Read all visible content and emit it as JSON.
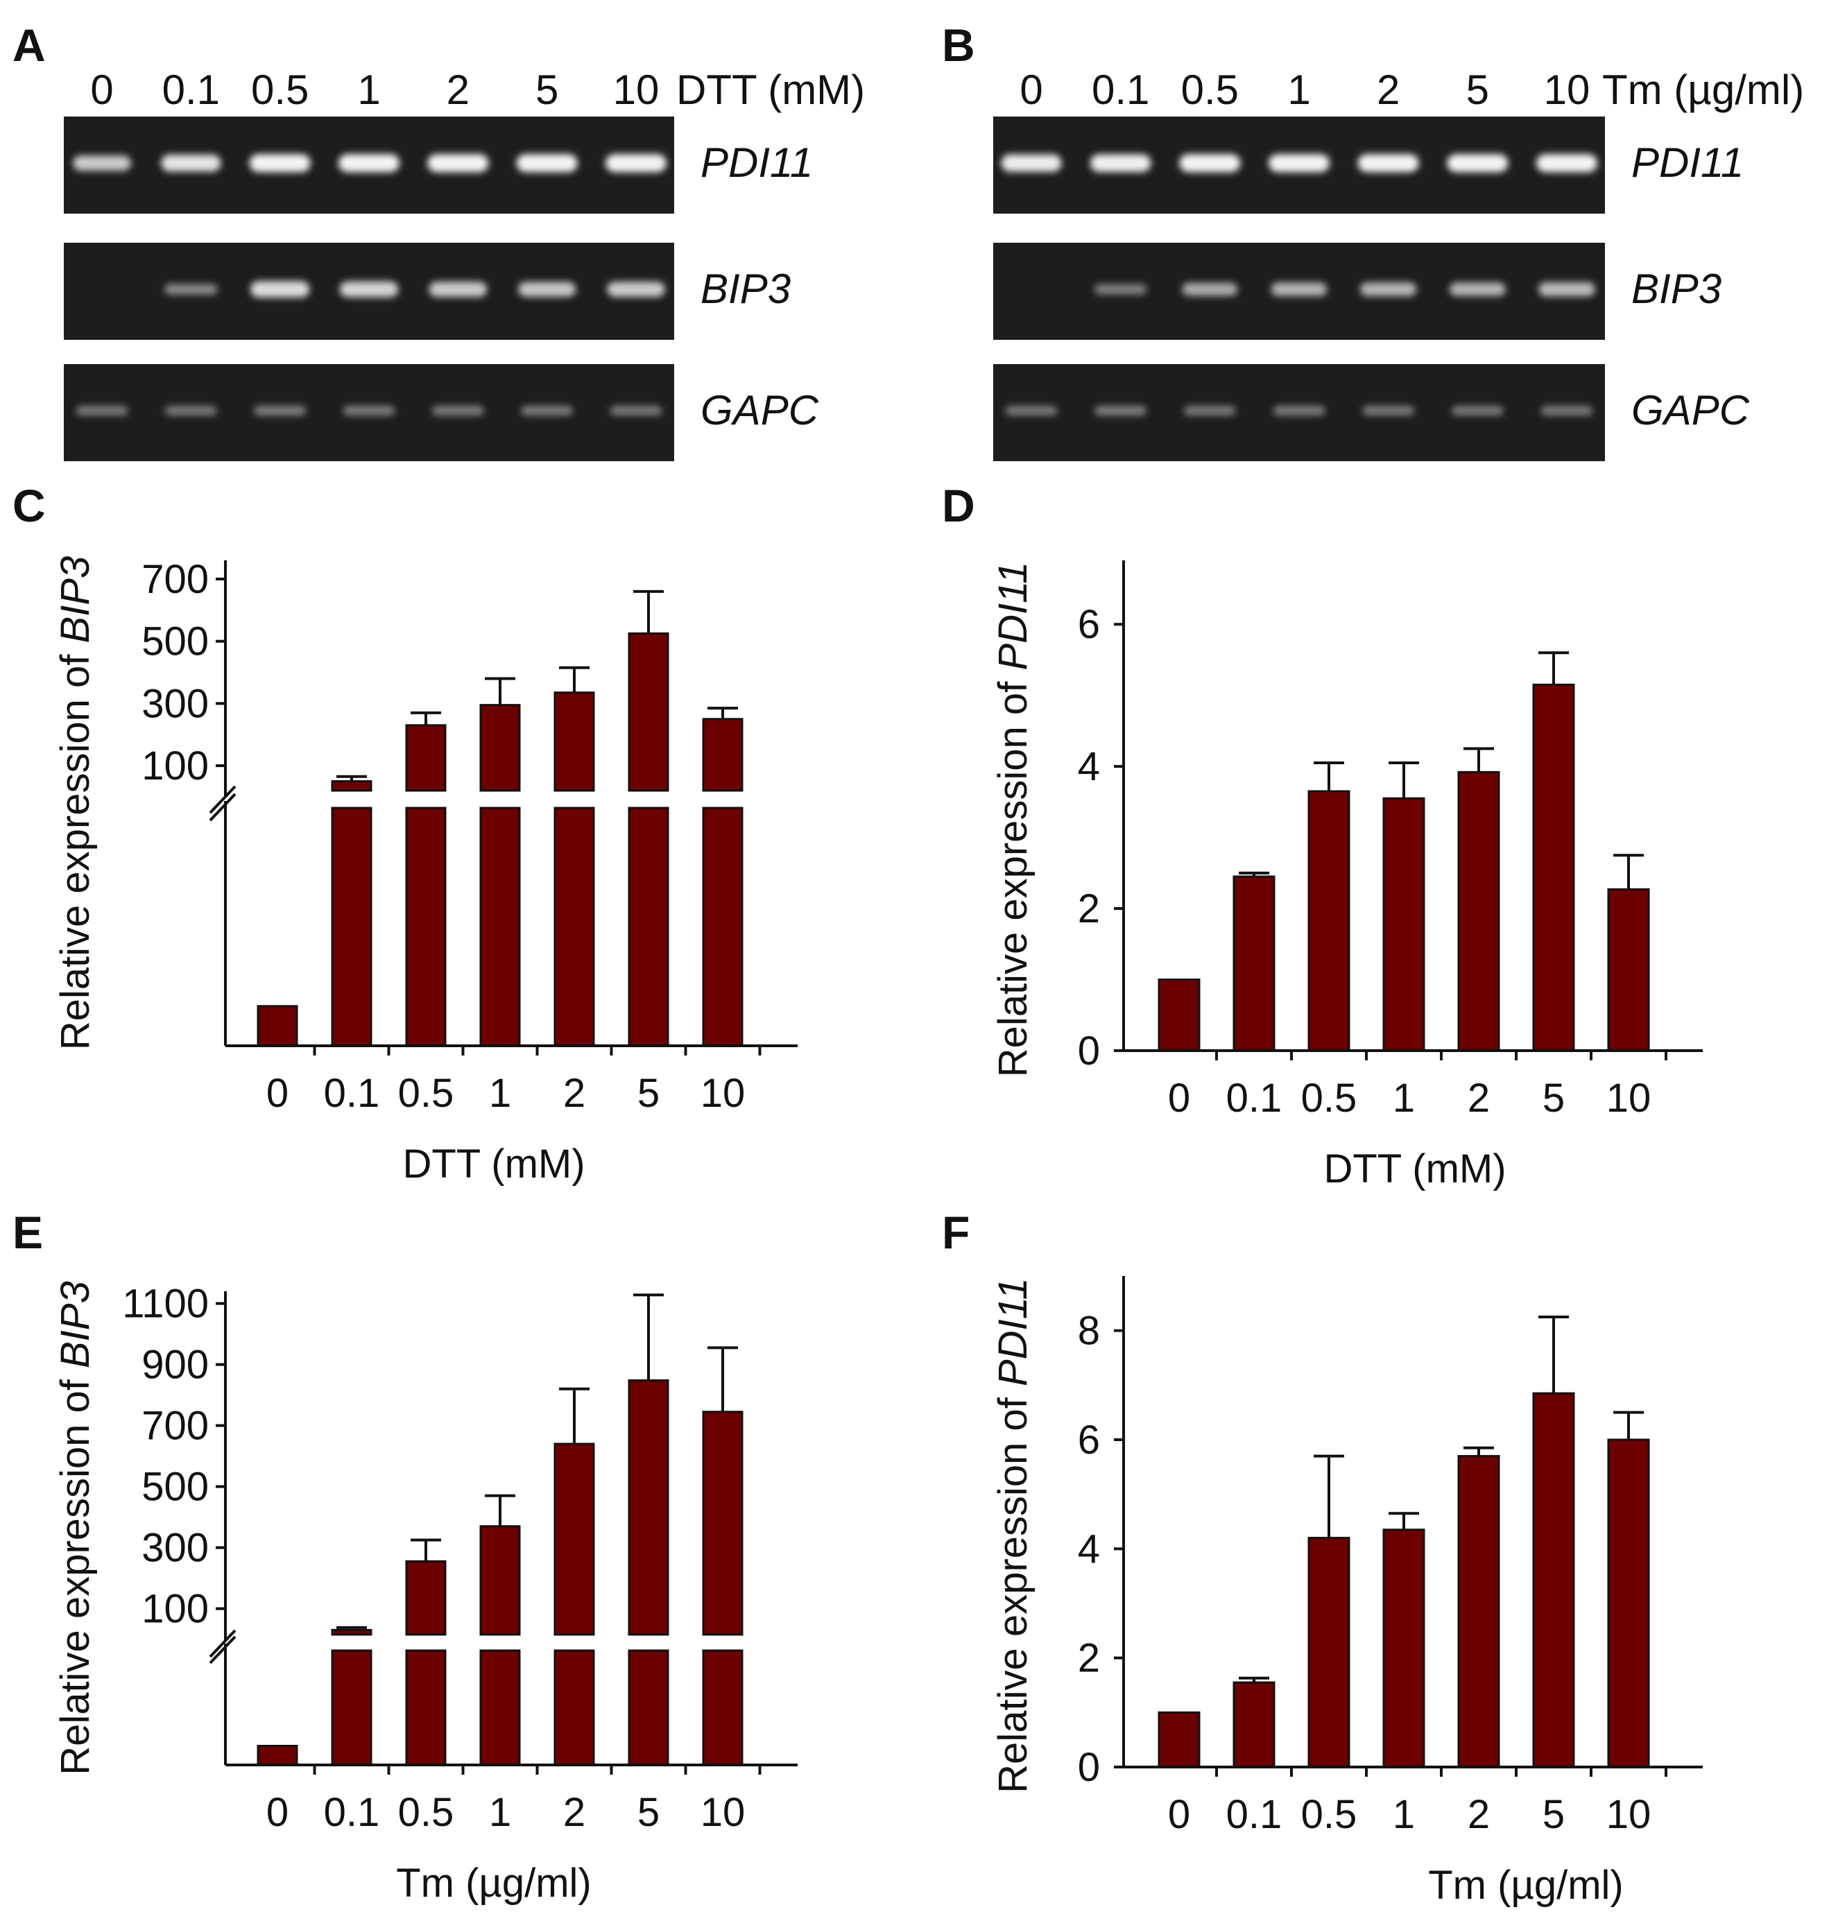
{
  "colors": {
    "bar": "#6b0000",
    "gel_bg": "#1d1d1d",
    "band": "#f4f4f4"
  },
  "gels": [
    {
      "letter": "A",
      "concentrations": [
        "0",
        "0.1",
        "0.5",
        "1",
        "2",
        "5",
        "10"
      ],
      "unit": "DTT (mM)",
      "rows": [
        {
          "gene": "PDI11",
          "intensities": [
            0.75,
            0.9,
            1.0,
            1.0,
            1.0,
            1.0,
            1.0
          ]
        },
        {
          "gene": "BIP3",
          "intensities": [
            0.0,
            0.35,
            0.85,
            0.8,
            0.75,
            0.72,
            0.75
          ]
        },
        {
          "gene": "GAPC",
          "intensities": [
            0.25,
            0.25,
            0.27,
            0.26,
            0.26,
            0.26,
            0.25
          ]
        }
      ]
    },
    {
      "letter": "B",
      "concentrations": [
        "0",
        "0.1",
        "0.5",
        "1",
        "2",
        "5",
        "10"
      ],
      "unit": "Tm (µg/ml)",
      "rows": [
        {
          "gene": "PDI11",
          "intensities": [
            0.95,
            0.97,
            1.0,
            1.0,
            1.0,
            1.0,
            1.0
          ]
        },
        {
          "gene": "BIP3",
          "intensities": [
            0.0,
            0.3,
            0.55,
            0.6,
            0.62,
            0.6,
            0.65
          ]
        },
        {
          "gene": "GAPC",
          "intensities": [
            0.25,
            0.27,
            0.25,
            0.26,
            0.25,
            0.25,
            0.25
          ]
        }
      ]
    }
  ],
  "chart_data": [
    {
      "panel": "C",
      "type": "bar",
      "broken_axis": true,
      "categories": [
        "0",
        "0.1",
        "0.5",
        "1",
        "2",
        "5",
        "10"
      ],
      "values": [
        1,
        50,
        230,
        295,
        335,
        525,
        250
      ],
      "errors": [
        0,
        15,
        40,
        85,
        80,
        135,
        35
      ],
      "ylabel_prefix": "Relative expression of ",
      "ylabel_gene": "BIP3",
      "xlabel": "DTT (mM)",
      "upper_ylim": [
        20,
        760
      ],
      "upper_ticks": [
        "700",
        "500",
        "300",
        "100"
      ],
      "upper_tick_values": [
        700,
        500,
        300,
        100
      ],
      "lower_ylim": [
        0,
        6
      ]
    },
    {
      "panel": "D",
      "type": "bar",
      "broken_axis": false,
      "categories": [
        "0",
        "0.1",
        "0.5",
        "1",
        "2",
        "5",
        "10"
      ],
      "values": [
        1.0,
        2.45,
        3.65,
        3.55,
        3.92,
        5.15,
        2.27
      ],
      "errors": [
        0,
        0.05,
        0.4,
        0.5,
        0.33,
        0.45,
        0.48
      ],
      "ylabel_prefix": "Relative expression of ",
      "ylabel_gene": "PDI11",
      "xlabel": "DTT (mM)",
      "ylim": [
        0,
        6.9
      ],
      "yticks": [
        "0",
        "2",
        "4",
        "6"
      ],
      "ytick_values": [
        0,
        2,
        4,
        6
      ]
    },
    {
      "panel": "E",
      "type": "bar",
      "broken_axis": true,
      "categories": [
        "0",
        "0.1",
        "0.5",
        "1",
        "2",
        "5",
        "10"
      ],
      "values": [
        1,
        30,
        255,
        370,
        640,
        848,
        745
      ],
      "errors": [
        0,
        8,
        70,
        100,
        180,
        280,
        210
      ],
      "ylabel_prefix": "Relative expression of ",
      "ylabel_gene": "BIP3",
      "xlabel": "Tm (µg/ml)",
      "upper_ylim": [
        15,
        1140
      ],
      "upper_ticks": [
        "1100",
        "900",
        "700",
        "500",
        "300",
        "100"
      ],
      "upper_tick_values": [
        1100,
        900,
        700,
        500,
        300,
        100
      ],
      "lower_ylim": [
        0,
        6
      ]
    },
    {
      "panel": "F",
      "type": "bar",
      "broken_axis": false,
      "categories": [
        "0",
        "0.1",
        "0.5",
        "1",
        "2",
        "5",
        "10"
      ],
      "values": [
        1.0,
        1.55,
        4.2,
        4.35,
        5.7,
        6.85,
        6.0
      ],
      "errors": [
        0,
        0.08,
        1.5,
        0.3,
        0.15,
        1.4,
        0.5
      ],
      "ylabel_prefix": "Relative expression of ",
      "ylabel_gene": "PDI11",
      "xlabel": "Tm (µg/ml)",
      "ylim": [
        0,
        9.0
      ],
      "yticks": [
        "0",
        "2",
        "4",
        "6",
        "8"
      ],
      "ytick_values": [
        0,
        2,
        4,
        6,
        8
      ]
    }
  ]
}
